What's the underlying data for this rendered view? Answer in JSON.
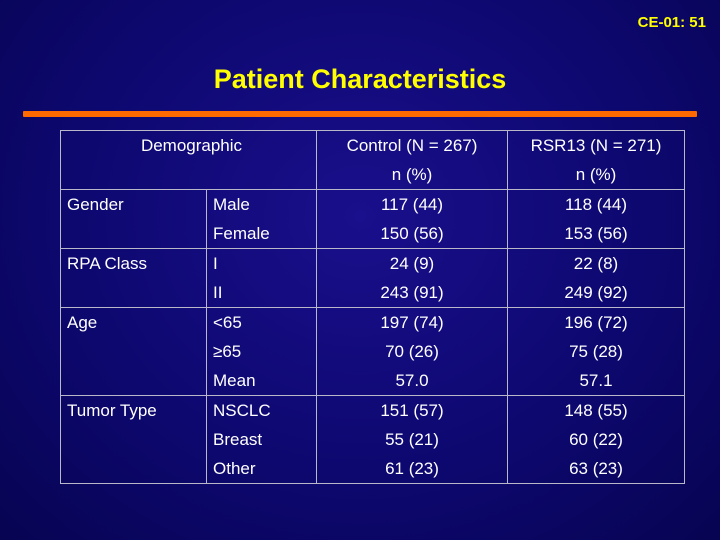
{
  "slide_id": "CE-01: 51",
  "title": "Patient Characteristics",
  "table": {
    "header": {
      "demographic": "Demographic",
      "control_line1": "Control (N = 267)",
      "control_line2": "n (%)",
      "rsr13_line1": "RSR13 (N = 271)",
      "rsr13_line2": "n (%)"
    },
    "rows": [
      {
        "group": "Gender",
        "subs": [
          "Male",
          "Female"
        ],
        "control": [
          "117 (44)",
          "150 (56)"
        ],
        "rsr13": [
          "118 (44)",
          "153 (56)"
        ]
      },
      {
        "group": "RPA Class",
        "subs": [
          "I",
          "II"
        ],
        "control": [
          "24 (9)",
          "243 (91)"
        ],
        "rsr13": [
          "22 (8)",
          "249 (92)"
        ]
      },
      {
        "group": "Age",
        "subs": [
          "<65",
          "≥65",
          "Mean"
        ],
        "control": [
          "197 (74)",
          "70 (26)",
          "57.0"
        ],
        "rsr13": [
          "196 (72)",
          "75 (28)",
          "57.1"
        ]
      },
      {
        "group": "Tumor Type",
        "subs": [
          "NSCLC",
          "Breast",
          "Other"
        ],
        "control": [
          "151 (57)",
          "55 (21)",
          "61 (23)"
        ],
        "rsr13": [
          "148 (55)",
          "60 (22)",
          "63 (23)"
        ]
      }
    ]
  }
}
